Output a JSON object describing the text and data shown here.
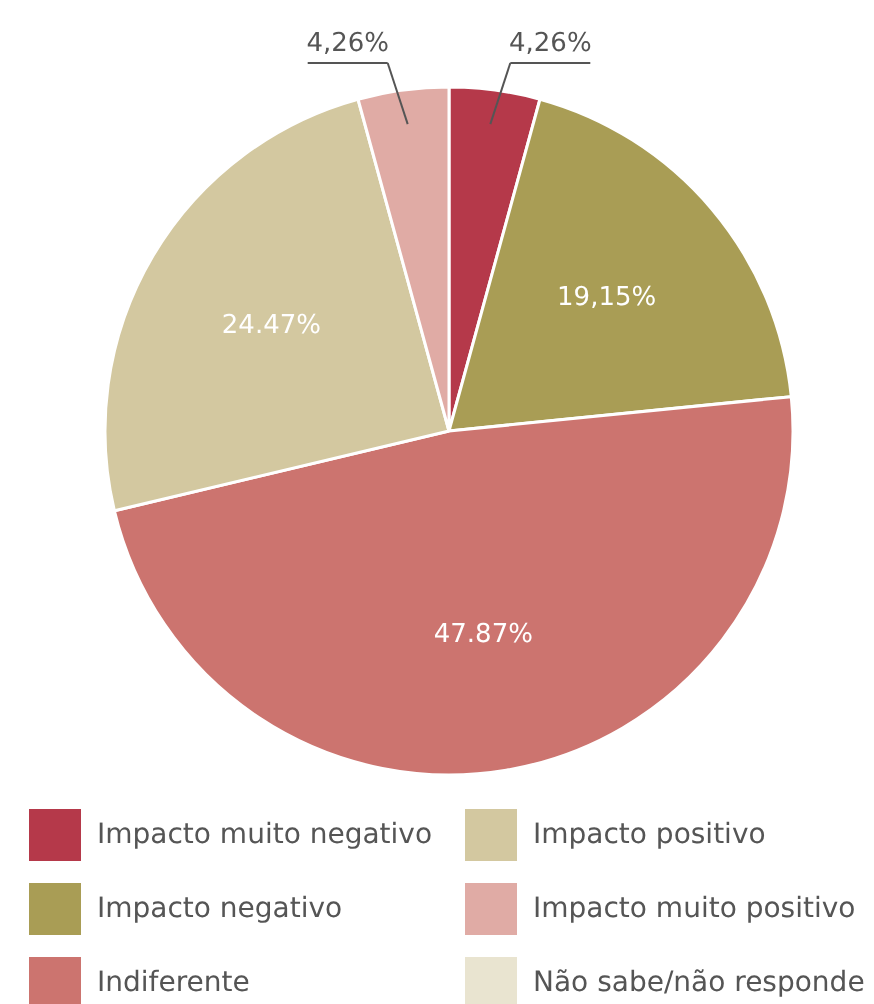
{
  "chart_data": {
    "type": "pie",
    "categories": [
      "Impacto muito negativo",
      "Impacto negativo",
      "Indiferente",
      "Impacto positivo",
      "Impacto muito positivo",
      "Não sabe/não responde"
    ],
    "values": [
      4.26,
      19.15,
      47.87,
      24.47,
      4.26,
      0
    ],
    "value_labels": [
      "4,26%",
      "19,15%",
      "47.87%",
      "24.47%",
      "4,26%",
      null
    ],
    "colors": [
      "#b5394a",
      "#a99d55",
      "#cc746f",
      "#d3c8a0",
      "#e0aba5",
      "#e9e4d0"
    ],
    "legend": "bottom"
  }
}
